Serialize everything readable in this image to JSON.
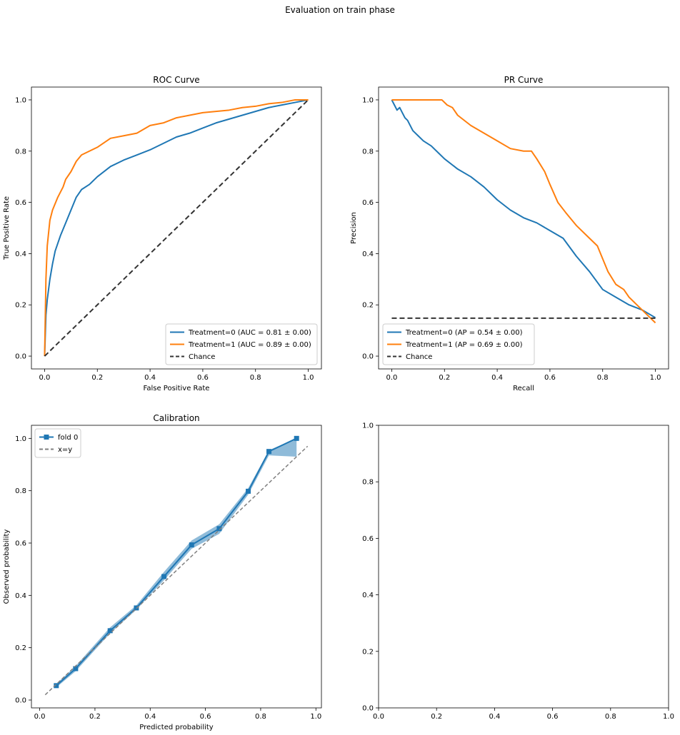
{
  "figure": {
    "title": "Evaluation on train phase"
  },
  "colors": {
    "blue": "#1f77b4",
    "orange": "#ff7f0e",
    "chance": "#333333",
    "identity": "#808080"
  },
  "chart_data": [
    {
      "id": "roc",
      "type": "line",
      "title": "ROC Curve",
      "xlabel": "False Positive Rate",
      "ylabel": "True Positive Rate",
      "xlim": [
        -0.05,
        1.05
      ],
      "ylim": [
        -0.05,
        1.05
      ],
      "xticks": [
        0,
        0.2,
        0.4,
        0.6,
        0.8,
        1.0
      ],
      "yticks": [
        0,
        0.2,
        0.4,
        0.6,
        0.8,
        1.0
      ],
      "xtick_labels": [
        "0.0",
        "0.2",
        "0.4",
        "0.6",
        "0.8",
        "1.0"
      ],
      "ytick_labels": [
        "0.0",
        "0.2",
        "0.4",
        "0.6",
        "0.8",
        "1.0"
      ],
      "legend_loc": "lower-right",
      "series": [
        {
          "name": "Treatment=0 (AUC = 0.81 ± 0.00)",
          "color": "#1f77b4",
          "style": "solid",
          "x": [
            0,
            0.005,
            0.01,
            0.02,
            0.03,
            0.04,
            0.05,
            0.06,
            0.08,
            0.1,
            0.12,
            0.14,
            0.17,
            0.2,
            0.25,
            0.3,
            0.35,
            0.4,
            0.45,
            0.5,
            0.55,
            0.6,
            0.65,
            0.7,
            0.75,
            0.8,
            0.85,
            0.9,
            0.95,
            1.0
          ],
          "y": [
            0,
            0.16,
            0.22,
            0.3,
            0.36,
            0.41,
            0.44,
            0.47,
            0.52,
            0.57,
            0.62,
            0.65,
            0.67,
            0.7,
            0.74,
            0.765,
            0.785,
            0.805,
            0.83,
            0.855,
            0.87,
            0.89,
            0.91,
            0.925,
            0.94,
            0.955,
            0.97,
            0.98,
            0.99,
            1.0
          ]
        },
        {
          "name": "Treatment=1 (AUC = 0.89 ± 0.00)",
          "color": "#ff7f0e",
          "style": "solid",
          "x": [
            0,
            0.005,
            0.01,
            0.02,
            0.03,
            0.05,
            0.07,
            0.08,
            0.1,
            0.12,
            0.14,
            0.17,
            0.2,
            0.25,
            0.3,
            0.35,
            0.4,
            0.45,
            0.5,
            0.55,
            0.6,
            0.65,
            0.7,
            0.75,
            0.8,
            0.85,
            0.9,
            0.95,
            1.0
          ],
          "y": [
            0,
            0.3,
            0.43,
            0.53,
            0.57,
            0.62,
            0.66,
            0.69,
            0.72,
            0.76,
            0.785,
            0.8,
            0.815,
            0.85,
            0.86,
            0.87,
            0.9,
            0.91,
            0.93,
            0.94,
            0.95,
            0.955,
            0.96,
            0.97,
            0.975,
            0.985,
            0.99,
            1.0,
            1.0
          ]
        },
        {
          "name": "Chance",
          "color": "#333333",
          "style": "dashed",
          "x": [
            0,
            1
          ],
          "y": [
            0,
            1
          ]
        }
      ]
    },
    {
      "id": "pr",
      "type": "line",
      "title": "PR Curve",
      "xlabel": "Recall",
      "ylabel": "Precision",
      "xlim": [
        -0.05,
        1.05
      ],
      "ylim": [
        -0.05,
        1.05
      ],
      "xticks": [
        0,
        0.2,
        0.4,
        0.6,
        0.8,
        1.0
      ],
      "yticks": [
        0,
        0.2,
        0.4,
        0.6,
        0.8,
        1.0
      ],
      "xtick_labels": [
        "0.0",
        "0.2",
        "0.4",
        "0.6",
        "0.8",
        "1.0"
      ],
      "ytick_labels": [
        "0.0",
        "0.2",
        "0.4",
        "0.6",
        "0.8",
        "1.0"
      ],
      "legend_loc": "lower-left",
      "series": [
        {
          "name": "Treatment=0 (AP = 0.54 ± 0.00)",
          "color": "#1f77b4",
          "style": "solid",
          "x": [
            0,
            0.01,
            0.02,
            0.03,
            0.04,
            0.05,
            0.06,
            0.08,
            0.1,
            0.12,
            0.15,
            0.18,
            0.2,
            0.25,
            0.3,
            0.35,
            0.4,
            0.45,
            0.5,
            0.55,
            0.6,
            0.65,
            0.7,
            0.75,
            0.8,
            0.85,
            0.9,
            0.95,
            1.0
          ],
          "y": [
            1.0,
            0.98,
            0.96,
            0.97,
            0.95,
            0.93,
            0.92,
            0.88,
            0.86,
            0.84,
            0.82,
            0.79,
            0.77,
            0.73,
            0.7,
            0.66,
            0.61,
            0.57,
            0.54,
            0.52,
            0.49,
            0.46,
            0.39,
            0.33,
            0.26,
            0.23,
            0.2,
            0.18,
            0.15
          ]
        },
        {
          "name": "Treatment=1 (AP = 0.69 ± 0.00)",
          "color": "#ff7f0e",
          "style": "solid",
          "x": [
            0,
            0.05,
            0.1,
            0.15,
            0.19,
            0.21,
            0.23,
            0.25,
            0.3,
            0.35,
            0.4,
            0.45,
            0.5,
            0.53,
            0.55,
            0.58,
            0.6,
            0.63,
            0.66,
            0.7,
            0.75,
            0.78,
            0.8,
            0.82,
            0.85,
            0.88,
            0.9,
            0.95,
            1.0
          ],
          "y": [
            1.0,
            1.0,
            1.0,
            1.0,
            1.0,
            0.98,
            0.97,
            0.94,
            0.9,
            0.87,
            0.84,
            0.81,
            0.8,
            0.8,
            0.77,
            0.72,
            0.67,
            0.6,
            0.56,
            0.51,
            0.46,
            0.43,
            0.38,
            0.33,
            0.28,
            0.26,
            0.23,
            0.18,
            0.13
          ]
        },
        {
          "name": "Chance",
          "color": "#333333",
          "style": "dashed",
          "x": [
            0,
            1
          ],
          "y": [
            0.148,
            0.148
          ]
        }
      ]
    },
    {
      "id": "calibration",
      "type": "line",
      "title": "Calibration",
      "xlabel": "Predicted probability",
      "ylabel": "Observed probability",
      "xlim": [
        -0.03,
        1.02
      ],
      "ylim": [
        -0.03,
        1.05
      ],
      "xticks": [
        0,
        0.2,
        0.4,
        0.6,
        0.8,
        1.0
      ],
      "yticks": [
        0,
        0.2,
        0.4,
        0.6,
        0.8,
        1.0
      ],
      "xtick_labels": [
        "0.0",
        "0.2",
        "0.4",
        "0.6",
        "0.8",
        "1.0"
      ],
      "ytick_labels": [
        "0.0",
        "0.2",
        "0.4",
        "0.6",
        "0.8",
        "1.0"
      ],
      "legend_loc": "upper-left",
      "series": [
        {
          "name": "fold 0",
          "color": "#1f77b4",
          "style": "solid",
          "marker": "square",
          "x": [
            0.06,
            0.13,
            0.255,
            0.35,
            0.45,
            0.55,
            0.65,
            0.755,
            0.83,
            0.93
          ],
          "y": [
            0.055,
            0.12,
            0.265,
            0.352,
            0.472,
            0.593,
            0.655,
            0.798,
            0.95,
            1.0
          ],
          "y_upper": [
            0.062,
            0.13,
            0.278,
            0.362,
            0.49,
            0.61,
            0.672,
            0.81,
            0.955,
            1.0
          ],
          "y_lower": [
            0.048,
            0.11,
            0.255,
            0.345,
            0.458,
            0.578,
            0.635,
            0.785,
            0.935,
            0.93
          ]
        },
        {
          "name": "x=y",
          "color": "#808080",
          "style": "dashed",
          "x": [
            0.02,
            0.97
          ],
          "y": [
            0.02,
            0.97
          ]
        }
      ]
    },
    {
      "id": "empty",
      "type": "line",
      "title": "",
      "xlabel": "",
      "ylabel": "",
      "xlim": [
        0,
        1
      ],
      "ylim": [
        0,
        1
      ],
      "xticks": [
        0,
        0.2,
        0.4,
        0.6,
        0.8,
        1.0
      ],
      "yticks": [
        0,
        0.2,
        0.4,
        0.6,
        0.8,
        1.0
      ],
      "xtick_labels": [
        "0.0",
        "0.2",
        "0.4",
        "0.6",
        "0.8",
        "1.0"
      ],
      "ytick_labels": [
        "0.0",
        "0.2",
        "0.4",
        "0.6",
        "0.8",
        "1.0"
      ],
      "legend_loc": "",
      "series": []
    }
  ]
}
